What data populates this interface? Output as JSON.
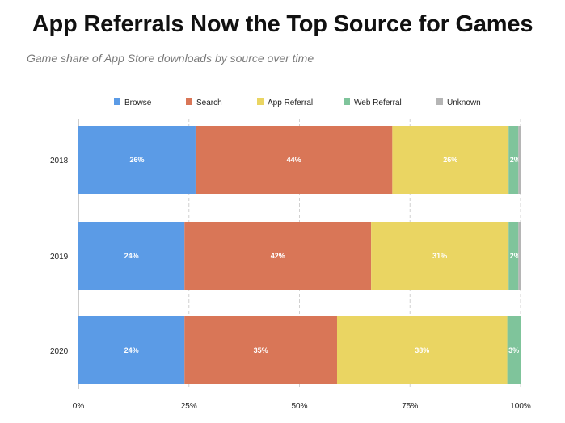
{
  "header": {
    "title": "App Referrals Now the Top Source for Games",
    "subtitle": "Game share of App Store downloads by source over time"
  },
  "chart_data": {
    "type": "bar",
    "orientation": "horizontal",
    "stacked": true,
    "categories": [
      "2018",
      "2019",
      "2020"
    ],
    "series": [
      {
        "name": "Browse",
        "color": "#5b9be6",
        "values": [
          26.5,
          24,
          24
        ],
        "labels": [
          "26%",
          "24%",
          "24%"
        ]
      },
      {
        "name": "Search",
        "color": "#d97657",
        "values": [
          44.5,
          42.2,
          34.5
        ],
        "labels": [
          "44%",
          "42%",
          "35%"
        ]
      },
      {
        "name": "App Referral",
        "color": "#ead562",
        "values": [
          26.3,
          31.1,
          38.5
        ],
        "labels": [
          "26%",
          "31%",
          "38%"
        ]
      },
      {
        "name": "Web Referral",
        "color": "#7fc49b",
        "values": [
          2.2,
          2.2,
          3
        ],
        "labels": [
          "2%",
          "2%",
          "3%"
        ]
      },
      {
        "name": "Unknown",
        "color": "#b5b5b5",
        "values": [
          0.5,
          0.5,
          0
        ],
        "labels": [
          "",
          "",
          ""
        ]
      }
    ],
    "x_ticks": [
      "0%",
      "25%",
      "50%",
      "75%",
      "100%"
    ],
    "xlim": [
      0,
      100
    ],
    "grid": "vertical dashed",
    "legend_position": "top"
  }
}
